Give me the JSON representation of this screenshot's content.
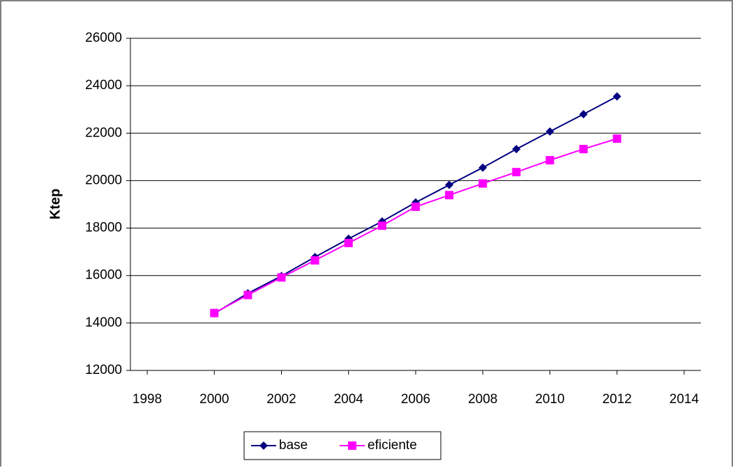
{
  "chart_data": {
    "type": "line",
    "y_label": "Ktep",
    "x": [
      2000,
      2001,
      2002,
      2003,
      2004,
      2005,
      2006,
      2007,
      2008,
      2009,
      2010,
      2011,
      2012
    ],
    "series": [
      {
        "name": "base",
        "color": "#000080",
        "marker": "diamond",
        "values": [
          14400,
          15250,
          15980,
          16780,
          17550,
          18280,
          19080,
          19820,
          20550,
          21330,
          22070,
          22800,
          23550
        ]
      },
      {
        "name": "eficiente",
        "color": "#ff00ff",
        "marker": "square",
        "values": [
          14420,
          15180,
          15920,
          16640,
          17370,
          18100,
          18900,
          19390,
          19880,
          20360,
          20860,
          21330,
          21770
        ]
      }
    ],
    "xlim": [
      1997.5,
      2014.5
    ],
    "xticks": [
      1998,
      2000,
      2002,
      2004,
      2006,
      2008,
      2010,
      2012,
      2014
    ],
    "ylim": [
      12000,
      26000
    ],
    "yticks": [
      12000,
      14000,
      16000,
      18000,
      20000,
      22000,
      24000,
      26000
    ],
    "grid": true,
    "legend": "bottom"
  }
}
